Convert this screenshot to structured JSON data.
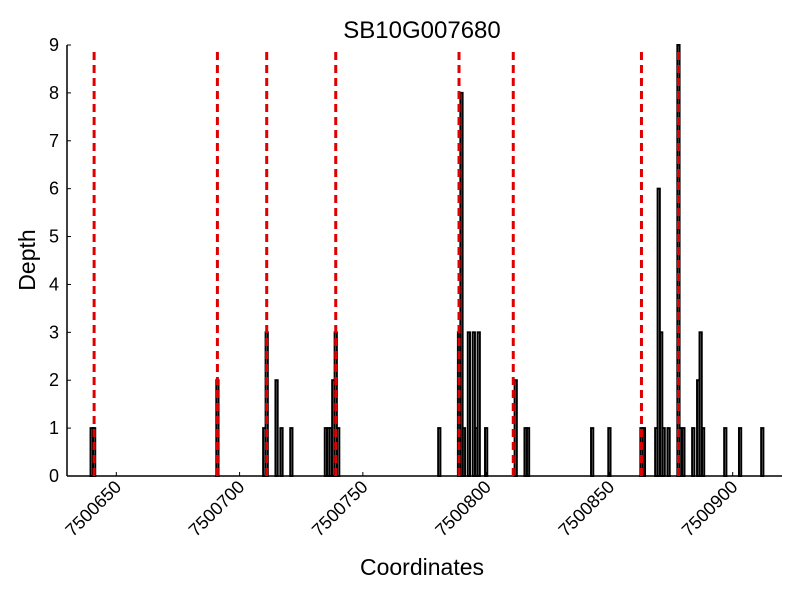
{
  "chart_data": {
    "type": "bar",
    "title": "SB10G007680",
    "xlabel": "Coordinates",
    "ylabel": "Depth",
    "xlim": [
      7500630,
      7500920
    ],
    "ylim": [
      0,
      9
    ],
    "x_ticks": [
      7500650,
      7500700,
      7500750,
      7500800,
      7500850,
      7500900
    ],
    "x_tick_labels": [
      "7500650",
      "7500700",
      "7500750",
      "7500800",
      "7500850",
      "7500900"
    ],
    "y_ticks": [
      0,
      1,
      2,
      3,
      4,
      5,
      6,
      7,
      8,
      9
    ],
    "y_tick_labels": [
      "0",
      "1",
      "2",
      "3",
      "4",
      "5",
      "6",
      "7",
      "8",
      "9"
    ],
    "series": [
      {
        "name": "depth",
        "color": "#000000",
        "x": [
          7500640,
          7500641,
          7500691,
          7500710,
          7500711,
          7500715,
          7500717,
          7500721,
          7500735,
          7500736,
          7500737,
          7500738,
          7500739,
          7500740,
          7500781,
          7500789,
          7500790,
          7500791,
          7500793,
          7500795,
          7500796,
          7500797,
          7500800,
          7500812,
          7500816,
          7500817,
          7500843,
          7500850,
          7500863,
          7500864,
          7500869,
          7500870,
          7500871,
          7500872,
          7500874,
          7500878,
          7500879,
          7500880,
          7500884,
          7500886,
          7500887,
          7500888,
          7500897,
          7500903,
          7500912
        ],
        "values": [
          1,
          1,
          2,
          1,
          3,
          2,
          1,
          1,
          1,
          1,
          1,
          2,
          3,
          1,
          1,
          3,
          8,
          1,
          3,
          3,
          1,
          3,
          1,
          2,
          1,
          1,
          1,
          1,
          1,
          1,
          1,
          6,
          3,
          1,
          1,
          9,
          1,
          1,
          1,
          2,
          3,
          1,
          1,
          1,
          1
        ]
      }
    ],
    "reference_lines": {
      "color": "#e00000",
      "style": "dashed",
      "x": [
        7500641,
        7500691,
        7500711,
        7500739,
        7500789,
        7500811,
        7500863,
        7500878
      ]
    }
  }
}
